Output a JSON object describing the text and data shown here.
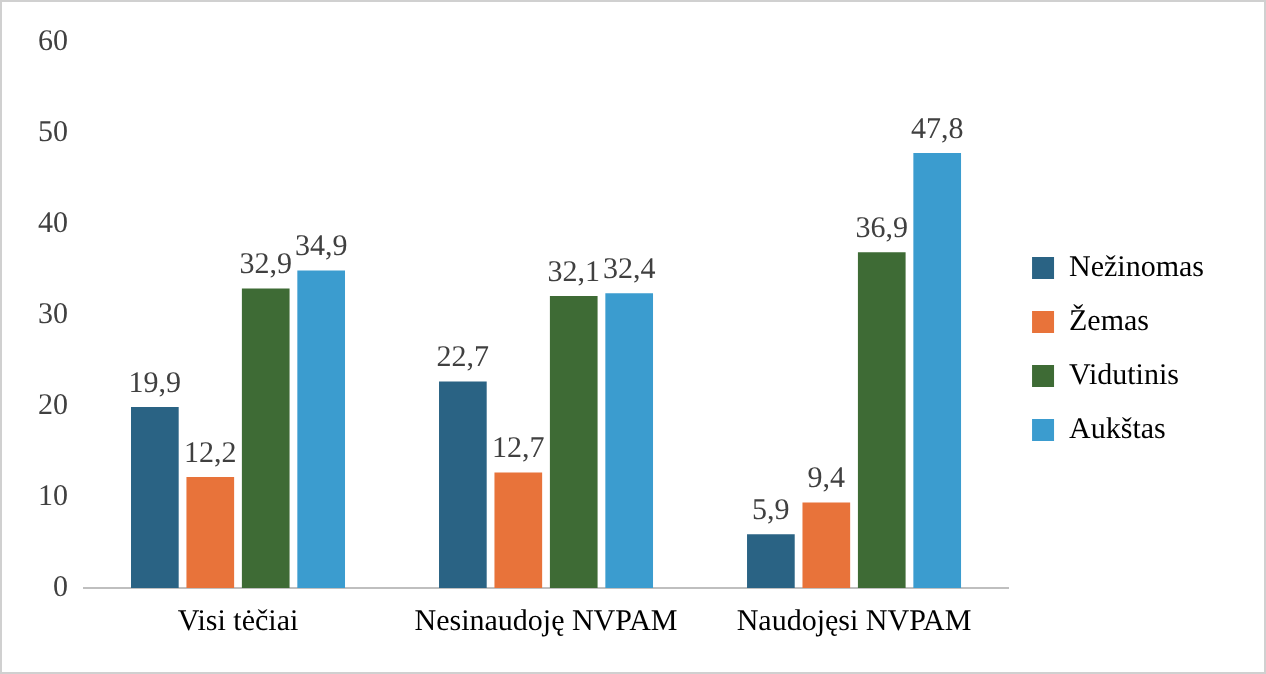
{
  "chart_data": {
    "type": "bar",
    "categories": [
      "Visi tėčiai",
      "Nesinaudoję NVPAM",
      "Naudojęsi NVPAM"
    ],
    "series": [
      {
        "name": "Nežinomas",
        "color": "#2a6384",
        "values": [
          19.9,
          22.7,
          5.9
        ],
        "value_labels": [
          "19,9",
          "22,7",
          "5,9"
        ]
      },
      {
        "name": "Žemas",
        "color": "#e8733a",
        "values": [
          12.2,
          12.7,
          9.4
        ],
        "value_labels": [
          "12,2",
          "12,7",
          "9,4"
        ]
      },
      {
        "name": "Vidutinis",
        "color": "#3e6b35",
        "values": [
          32.9,
          32.1,
          36.9
        ],
        "value_labels": [
          "32,9",
          "32,1",
          "36,9"
        ]
      },
      {
        "name": "Aukštas",
        "color": "#3b9ccf",
        "values": [
          34.9,
          32.4,
          47.8
        ],
        "value_labels": [
          "34,9",
          "32,4",
          "47,8"
        ]
      }
    ],
    "ylim": [
      0,
      60
    ],
    "yticks": [
      0,
      10,
      20,
      30,
      40,
      50,
      60
    ],
    "grid": false,
    "legend": "right"
  }
}
